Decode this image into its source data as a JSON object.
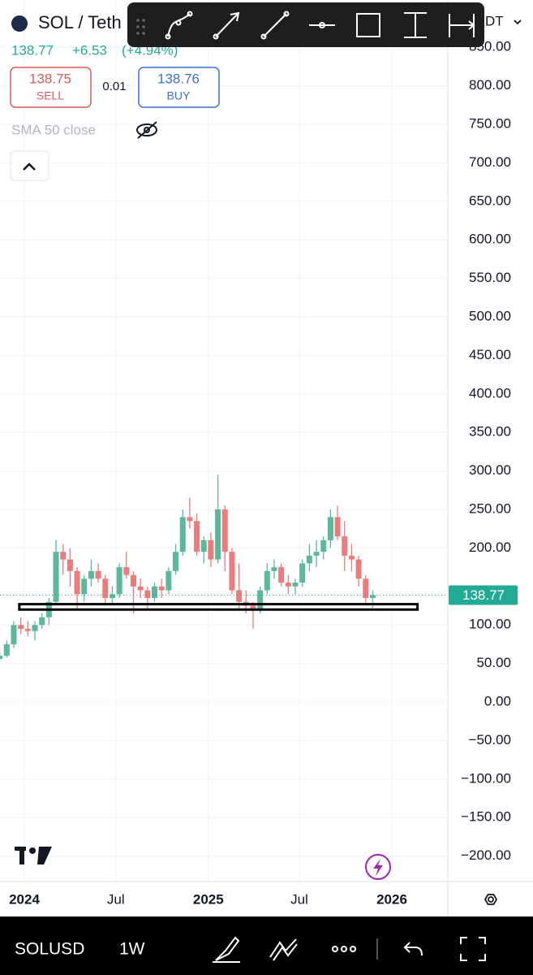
{
  "header": {
    "symbol": "SOL / Teth",
    "price": "138.77",
    "change": "+6.53",
    "change_pct": "(+4.94%)",
    "sell_price": "138.75",
    "sell": "SELL",
    "spread": "0.01",
    "buy_price": "138.76",
    "buy": "BUY",
    "indicator": "SMA 50 close",
    "currency": "DT"
  },
  "footer": {
    "symbol": "SOLUSD",
    "interval": "1W"
  },
  "chart_data": {
    "type": "candlestick",
    "x": [
      "2023-11-13",
      "2023-11-27",
      "2023-12-11",
      "2023-12-25",
      "2024-01-08",
      "2024-01-22",
      "2024-02-05",
      "2024-02-19",
      "2024-03-04",
      "2024-03-18",
      "2024-04-01",
      "2024-04-15",
      "2024-04-29",
      "2024-05-13",
      "2024-05-27",
      "2024-06-10",
      "2024-06-24",
      "2024-07-08",
      "2024-07-22",
      "2024-08-05",
      "2024-08-19",
      "2024-09-02",
      "2024-09-16",
      "2024-09-30",
      "2024-10-14",
      "2024-10-28",
      "2024-11-11",
      "2024-11-25",
      "2024-12-09",
      "2024-12-23",
      "2025-01-06",
      "2025-01-20",
      "2025-02-03",
      "2025-02-17",
      "2025-03-03",
      "2025-03-17",
      "2025-03-31",
      "2025-04-14",
      "2025-04-28",
      "2025-05-12",
      "2025-05-26",
      "2025-06-09",
      "2025-06-23",
      "2025-07-07",
      "2025-07-21",
      "2025-08-04",
      "2025-08-18",
      "2025-09-01",
      "2025-09-15",
      "2025-09-29",
      "2025-10-13",
      "2025-10-27",
      "2025-11-10",
      "2025-11-24"
    ],
    "open": [
      56,
      60,
      75,
      100,
      95,
      92,
      100,
      110,
      130,
      195,
      185,
      170,
      140,
      160,
      170,
      160,
      135,
      140,
      175,
      165,
      150,
      145,
      135,
      150,
      145,
      170,
      195,
      240,
      235,
      195,
      210,
      185,
      250,
      195,
      145,
      130,
      125,
      120,
      145,
      170,
      175,
      155,
      150,
      155,
      180,
      190,
      195,
      210,
      240,
      215,
      190,
      185,
      160,
      135
    ],
    "high": [
      65,
      80,
      105,
      110,
      105,
      105,
      115,
      135,
      210,
      205,
      200,
      175,
      165,
      185,
      180,
      165,
      150,
      180,
      195,
      170,
      160,
      150,
      155,
      160,
      175,
      205,
      250,
      265,
      245,
      215,
      220,
      295,
      255,
      200,
      180,
      145,
      130,
      150,
      180,
      185,
      180,
      165,
      160,
      185,
      205,
      210,
      215,
      250,
      255,
      235,
      205,
      190,
      165,
      145
    ],
    "low": [
      52,
      58,
      70,
      88,
      85,
      80,
      95,
      100,
      125,
      165,
      150,
      120,
      130,
      150,
      155,
      125,
      125,
      135,
      160,
      115,
      135,
      120,
      130,
      135,
      140,
      165,
      190,
      225,
      190,
      180,
      175,
      180,
      170,
      140,
      120,
      115,
      95,
      115,
      140,
      160,
      150,
      140,
      140,
      150,
      170,
      175,
      185,
      200,
      210,
      170,
      170,
      150,
      125,
      122
    ],
    "close": [
      60,
      75,
      100,
      95,
      92,
      100,
      110,
      130,
      195,
      185,
      170,
      140,
      160,
      170,
      160,
      135,
      140,
      175,
      165,
      150,
      145,
      135,
      150,
      145,
      170,
      195,
      240,
      235,
      195,
      210,
      185,
      250,
      195,
      145,
      130,
      125,
      120,
      145,
      170,
      175,
      155,
      150,
      155,
      180,
      190,
      195,
      210,
      240,
      215,
      190,
      185,
      160,
      135,
      138.77
    ],
    "up_color": "#5cb89c",
    "down_color": "#ec7b7b",
    "last_price": 138.77,
    "zone": {
      "low": 120,
      "high": 127,
      "start": "2023-12-22",
      "end": "2026-02-21"
    },
    "ylim": [
      -230,
      870
    ],
    "yticks": [
      {
        "value": 850,
        "label": "850.00"
      },
      {
        "value": 800,
        "label": "800.00"
      },
      {
        "value": 750,
        "label": "750.00"
      },
      {
        "value": 700,
        "label": "700.00"
      },
      {
        "value": 650,
        "label": "650.00"
      },
      {
        "value": 600,
        "label": "600.00"
      },
      {
        "value": 550,
        "label": "550.00"
      },
      {
        "value": 500,
        "label": "500.00"
      },
      {
        "value": 450,
        "label": "450.00"
      },
      {
        "value": 400,
        "label": "400.00"
      },
      {
        "value": 350,
        "label": "350.00"
      },
      {
        "value": 300,
        "label": "300.00"
      },
      {
        "value": 250,
        "label": "250.00"
      },
      {
        "value": 200,
        "label": "200.00"
      },
      {
        "value": 100,
        "label": "100.00"
      },
      {
        "value": 50,
        "label": "50.00"
      },
      {
        "value": 0,
        "label": "0.00"
      },
      {
        "value": -50,
        "label": "−50.00"
      },
      {
        "value": -100,
        "label": "−100.00"
      },
      {
        "value": -150,
        "label": "−150.00"
      },
      {
        "value": -200,
        "label": "−200.00"
      }
    ],
    "xticks": [
      {
        "value": "2024-01-01",
        "label": "2024"
      },
      {
        "value": "2024-07-01",
        "label": "Jul"
      },
      {
        "value": "2025-01-01",
        "label": "2025"
      },
      {
        "value": "2025-07-01",
        "label": "Jul"
      },
      {
        "value": "2026-01-01",
        "label": "2026"
      }
    ],
    "grid": true
  }
}
